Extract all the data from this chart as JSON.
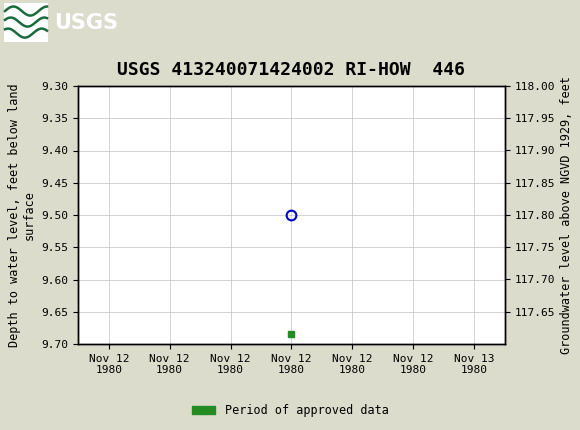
{
  "title": "USGS 413240071424002 RI-HOW  446",
  "ylabel_left": "Depth to water level, feet below land\nsurface",
  "ylabel_right": "Groundwater level above NGVD 1929, feet",
  "ylim_left": [
    9.3,
    9.7
  ],
  "yticks_left": [
    9.3,
    9.35,
    9.4,
    9.45,
    9.5,
    9.55,
    9.6,
    9.65,
    9.7
  ],
  "yticks_right": [
    118.0,
    117.95,
    117.9,
    117.85,
    117.8,
    117.75,
    117.7,
    117.65
  ],
  "data_point_x": 3.5,
  "data_point_y": 9.5,
  "data_marker_x": 3.5,
  "data_marker_y": 9.685,
  "xlim": [
    0,
    7
  ],
  "xtick_positions": [
    0.5,
    1.5,
    2.5,
    3.5,
    4.5,
    5.5,
    6.5
  ],
  "xtick_labels": [
    "Nov 12\n1980",
    "Nov 12\n1980",
    "Nov 12\n1980",
    "Nov 12\n1980",
    "Nov 12\n1980",
    "Nov 12\n1980",
    "Nov 13\n1980"
  ],
  "header_color": "#1a6b3c",
  "background_color": "#dcdccc",
  "plot_bg_color": "#ffffff",
  "grid_color": "#c0c0c0",
  "legend_label": "Period of approved data",
  "legend_color": "#228B22",
  "circle_color": "#0000cd",
  "title_fontsize": 13,
  "axis_fontsize": 8.5,
  "tick_fontsize": 8
}
